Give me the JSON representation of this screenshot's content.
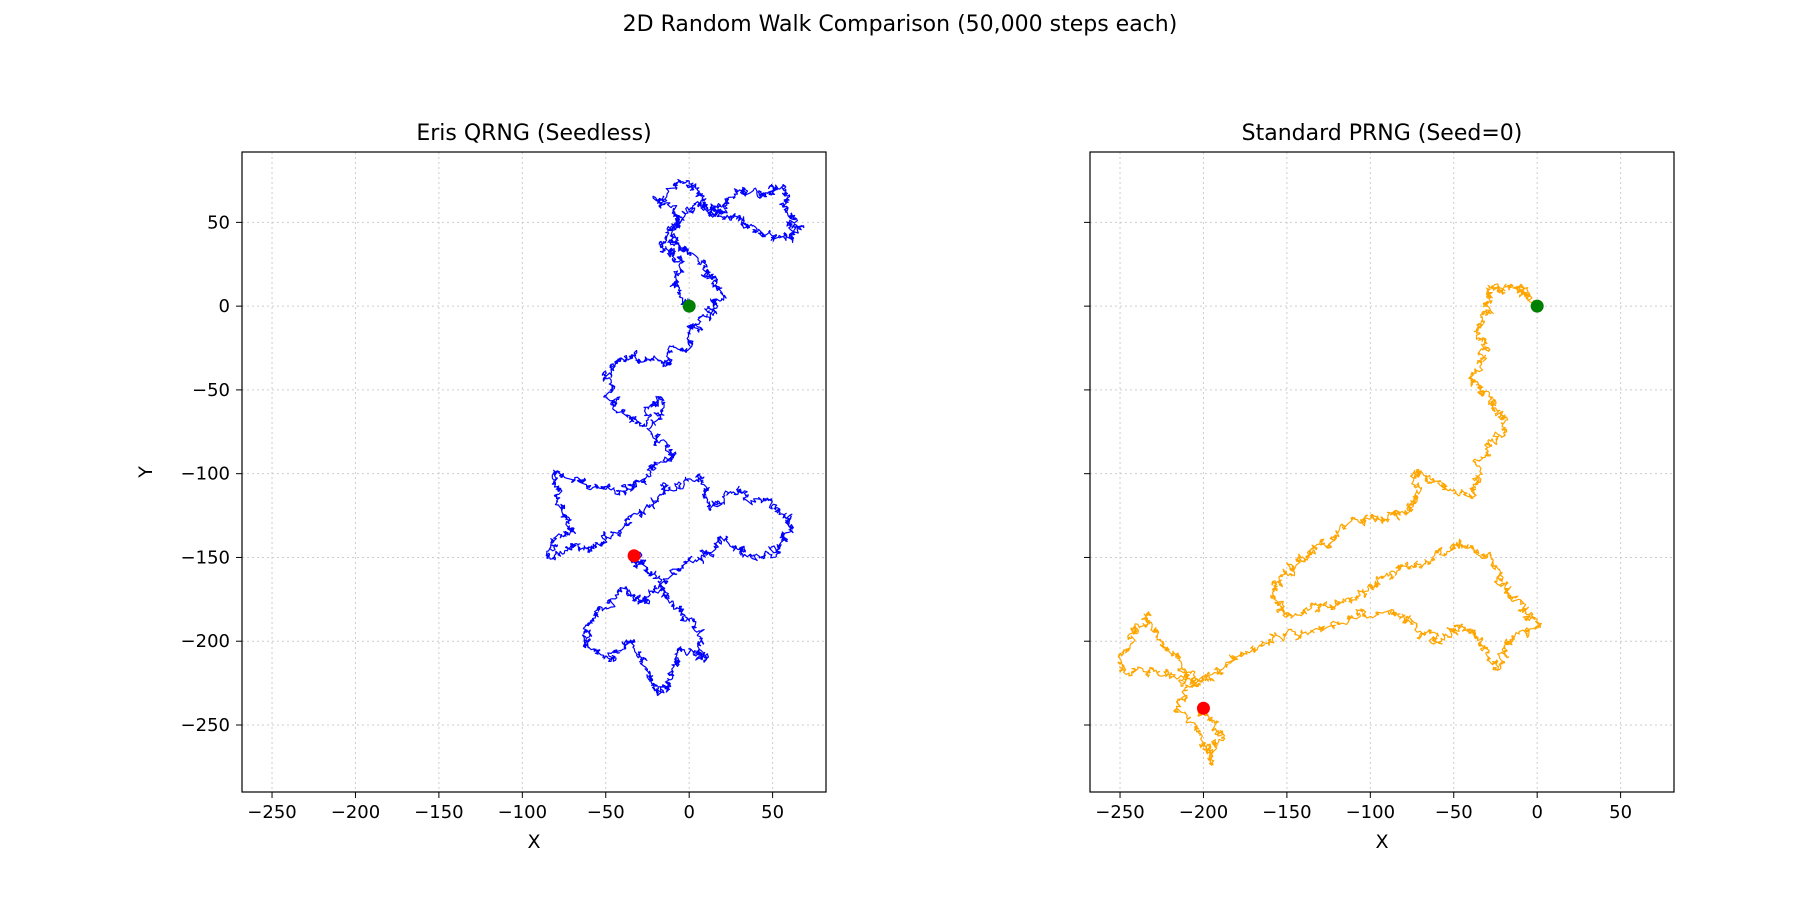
{
  "figure": {
    "suptitle": "2D Random Walk Comparison (50,000 steps each)"
  },
  "chart_data": [
    {
      "type": "line",
      "title": "Eris QRNG (Seedless)",
      "xlabel": "X",
      "ylabel": "Y",
      "xlim": [
        -268,
        82
      ],
      "ylim": [
        -290,
        92
      ],
      "xticks": [
        -250,
        -200,
        -150,
        -100,
        -50,
        0,
        50
      ],
      "yticks": [
        -250,
        -200,
        -150,
        -100,
        -50,
        0,
        50
      ],
      "grid": true,
      "y_tick_labels_shown": true,
      "series": [
        {
          "color": "#0000ff",
          "steps": 50000,
          "path": [
            [
              0,
              0
            ],
            [
              -8,
              10
            ],
            [
              -5,
              25
            ],
            [
              -15,
              35
            ],
            [
              -10,
              50
            ],
            [
              5,
              60
            ],
            [
              15,
              55
            ],
            [
              30,
              70
            ],
            [
              45,
              65
            ],
            [
              55,
              72
            ],
            [
              60,
              55
            ],
            [
              65,
              45
            ],
            [
              50,
              40
            ],
            [
              35,
              50
            ],
            [
              20,
              55
            ],
            [
              8,
              62
            ],
            [
              0,
              74
            ],
            [
              -20,
              64
            ],
            [
              -5,
              52
            ],
            [
              -12,
              40
            ],
            [
              0,
              30
            ],
            [
              10,
              20
            ],
            [
              18,
              8
            ],
            [
              12,
              -5
            ],
            [
              3,
              -12
            ],
            [
              -2,
              -25
            ],
            [
              -15,
              -35
            ],
            [
              -35,
              -30
            ],
            [
              -50,
              -40
            ],
            [
              -45,
              -60
            ],
            [
              -30,
              -70
            ],
            [
              -15,
              -55
            ],
            [
              -20,
              -75
            ],
            [
              -10,
              -90
            ],
            [
              -25,
              -100
            ],
            [
              -40,
              -110
            ],
            [
              -60,
              -105
            ],
            [
              -80,
              -100
            ],
            [
              -78,
              -120
            ],
            [
              -70,
              -135
            ],
            [
              -85,
              -148
            ],
            [
              -65,
              -145
            ],
            [
              -50,
              -140
            ],
            [
              -30,
              -125
            ],
            [
              -15,
              -110
            ],
            [
              5,
              -100
            ],
            [
              15,
              -120
            ],
            [
              30,
              -110
            ],
            [
              50,
              -120
            ],
            [
              60,
              -130
            ],
            [
              55,
              -145
            ],
            [
              35,
              -150
            ],
            [
              20,
              -140
            ],
            [
              5,
              -150
            ],
            [
              -15,
              -165
            ],
            [
              -25,
              -175
            ],
            [
              -40,
              -170
            ],
            [
              -55,
              -182
            ],
            [
              -65,
              -198
            ],
            [
              -50,
              -210
            ],
            [
              -35,
              -198
            ],
            [
              -25,
              -220
            ],
            [
              -18,
              -233
            ],
            [
              -10,
              -222
            ],
            [
              -5,
              -205
            ],
            [
              10,
              -210
            ],
            [
              5,
              -192
            ],
            [
              -10,
              -180
            ],
            [
              -20,
              -162
            ],
            [
              -32,
              -152
            ],
            [
              -32,
              -148
            ]
          ]
        }
      ],
      "markers": [
        {
          "label": "start",
          "x": 0,
          "y": 0,
          "color": "#008000"
        },
        {
          "label": "end",
          "x": -33,
          "y": -149,
          "color": "#ff0000"
        }
      ]
    },
    {
      "type": "line",
      "title": "Standard PRNG (Seed=0)",
      "xlabel": "X",
      "ylabel": "",
      "xlim": [
        -268,
        82
      ],
      "ylim": [
        -290,
        92
      ],
      "xticks": [
        -250,
        -200,
        -150,
        -100,
        -50,
        0,
        50
      ],
      "yticks": [
        -250,
        -200,
        -150,
        -100,
        -50,
        0,
        50
      ],
      "grid": true,
      "y_tick_labels_shown": false,
      "series": [
        {
          "color": "#ffa500",
          "steps": 50000,
          "path": [
            [
              0,
              0
            ],
            [
              -5,
              8
            ],
            [
              -15,
              12
            ],
            [
              -25,
              10
            ],
            [
              -30,
              2
            ],
            [
              -35,
              -15
            ],
            [
              -30,
              -30
            ],
            [
              -40,
              -45
            ],
            [
              -30,
              -55
            ],
            [
              -20,
              -65
            ],
            [
              -25,
              -80
            ],
            [
              -35,
              -100
            ],
            [
              -40,
              -115
            ],
            [
              -60,
              -105
            ],
            [
              -75,
              -95
            ],
            [
              -70,
              -115
            ],
            [
              -80,
              -125
            ],
            [
              -95,
              -125
            ],
            [
              -110,
              -130
            ],
            [
              -125,
              -140
            ],
            [
              -140,
              -150
            ],
            [
              -150,
              -160
            ],
            [
              -160,
              -170
            ],
            [
              -150,
              -185
            ],
            [
              -130,
              -180
            ],
            [
              -110,
              -175
            ],
            [
              -95,
              -165
            ],
            [
              -80,
              -155
            ],
            [
              -60,
              -150
            ],
            [
              -45,
              -140
            ],
            [
              -30,
              -150
            ],
            [
              -20,
              -165
            ],
            [
              -10,
              -180
            ],
            [
              0,
              -190
            ],
            [
              -15,
              -200
            ],
            [
              -25,
              -215
            ],
            [
              -35,
              -200
            ],
            [
              -45,
              -190
            ],
            [
              -60,
              -200
            ],
            [
              -75,
              -190
            ],
            [
              -90,
              -180
            ],
            [
              -110,
              -185
            ],
            [
              -135,
              -195
            ],
            [
              -160,
              -200
            ],
            [
              -180,
              -210
            ],
            [
              -195,
              -220
            ],
            [
              -210,
              -225
            ],
            [
              -230,
              -220
            ],
            [
              -250,
              -215
            ],
            [
              -240,
              -195
            ],
            [
              -235,
              -185
            ],
            [
              -225,
              -200
            ],
            [
              -215,
              -210
            ],
            [
              -205,
              -225
            ],
            [
              -215,
              -240
            ],
            [
              -200,
              -260
            ],
            [
              -195,
              -270
            ],
            [
              -190,
              -255
            ],
            [
              -200,
              -242
            ],
            [
              -200,
              -240
            ]
          ]
        }
      ],
      "markers": [
        {
          "label": "start",
          "x": 0,
          "y": 0,
          "color": "#008000"
        },
        {
          "label": "end",
          "x": -200,
          "y": -240,
          "color": "#ff0000"
        }
      ]
    }
  ]
}
